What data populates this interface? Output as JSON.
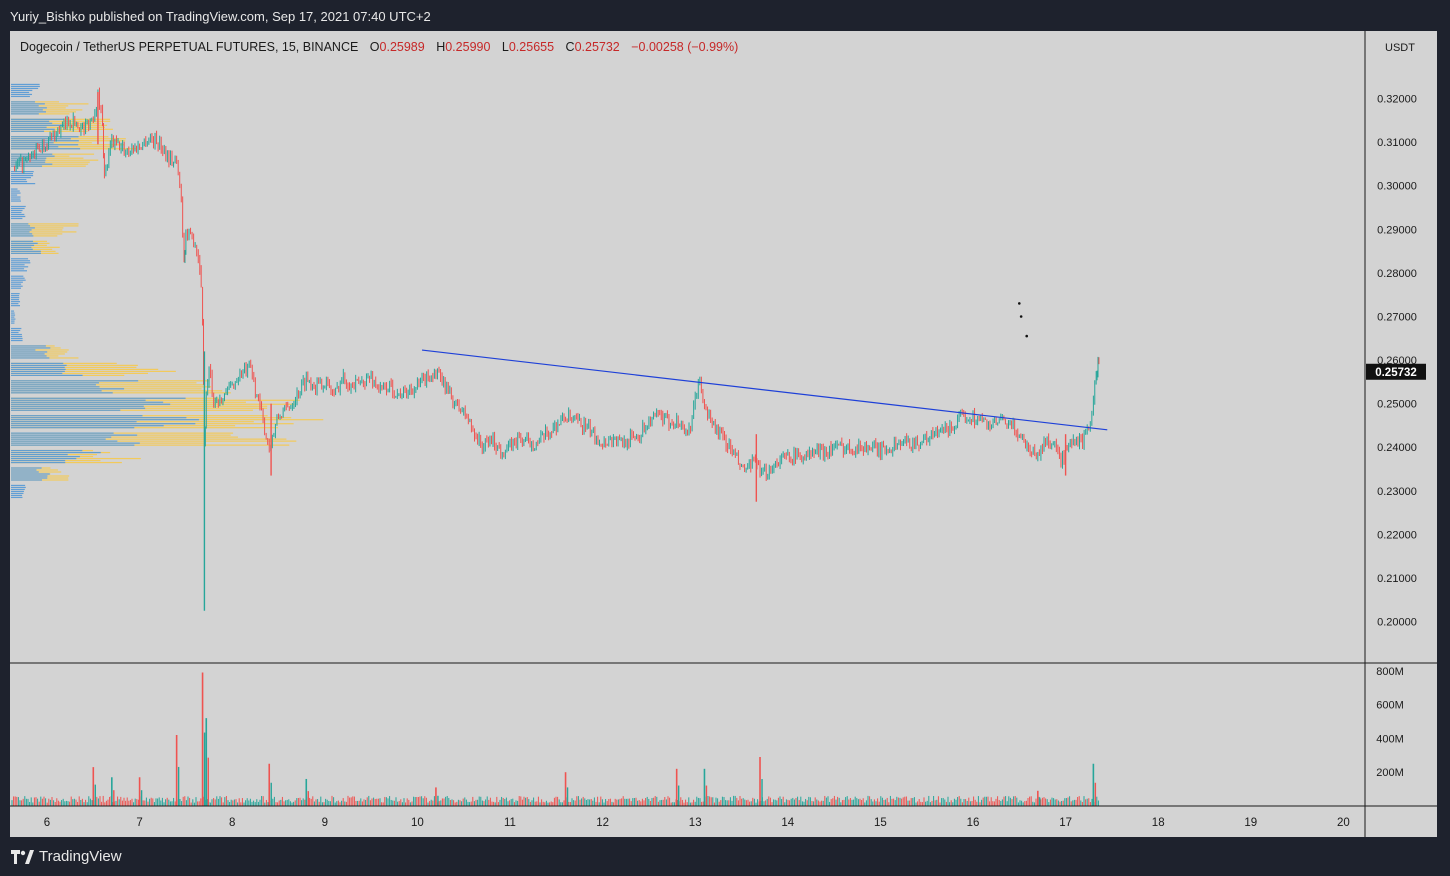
{
  "header": {
    "published": "Yuriy_Bishko published on TradingView.com, Sep 17, 2021 07:40 UTC+2"
  },
  "legend": {
    "symbol": "Dogecoin / TetherUS PERPETUAL FUTURES, 15, BINANCE",
    "open_label": "O",
    "open": "0.25989",
    "high_label": "H",
    "high": "0.25990",
    "low_label": "L",
    "low": "0.25655",
    "close_label": "C",
    "close": "0.25732",
    "change": "−0.00258 (−0.99%)"
  },
  "brand": {
    "name": "TradingView"
  },
  "colors": {
    "up": "#26a69a",
    "down": "#ef5350",
    "trendline": "#1e40d8",
    "vp_blue": "#5b9bd5",
    "vp_yellow": "#f5c94e",
    "background": "#d3d3d3"
  },
  "chart_data": {
    "type": "candlestick",
    "currency_label": "USDT",
    "last_price_label": "0.25732",
    "ylim": [
      0.1905,
      0.3355
    ],
    "y_ticks": [
      0.32,
      0.31,
      0.3,
      0.29,
      0.28,
      0.27,
      0.26,
      0.25,
      0.24,
      0.23,
      0.22,
      0.21,
      0.2
    ],
    "y_tick_labels": [
      "0.32000",
      "0.31000",
      "0.30000",
      "0.29000",
      "0.28000",
      "0.27000",
      "0.26000",
      "0.25000",
      "0.24000",
      "0.23000",
      "0.22000",
      "0.21000",
      "0.20000"
    ],
    "x_ticks": [
      6,
      7,
      8,
      9,
      10,
      11,
      12,
      13,
      14,
      15,
      16,
      17,
      18,
      19,
      20
    ],
    "x_tick_labels": [
      "6",
      "7",
      "8",
      "9",
      "10",
      "11",
      "12",
      "13",
      "14",
      "15",
      "16",
      "17",
      "18",
      "19",
      "20"
    ],
    "price_path": [
      [
        5.65,
        0.304
      ],
      [
        5.8,
        0.306
      ],
      [
        5.95,
        0.309
      ],
      [
        6.1,
        0.312
      ],
      [
        6.25,
        0.315
      ],
      [
        6.4,
        0.313
      ],
      [
        6.5,
        0.316
      ],
      [
        6.55,
        0.321
      ],
      [
        6.6,
        0.315
      ],
      [
        6.62,
        0.302
      ],
      [
        6.7,
        0.31
      ],
      [
        6.85,
        0.308
      ],
      [
        7.0,
        0.309
      ],
      [
        7.1,
        0.311
      ],
      [
        7.2,
        0.31
      ],
      [
        7.3,
        0.307
      ],
      [
        7.4,
        0.305
      ],
      [
        7.45,
        0.297
      ],
      [
        7.48,
        0.283
      ],
      [
        7.5,
        0.289
      ],
      [
        7.6,
        0.287
      ],
      [
        7.65,
        0.282
      ],
      [
        7.68,
        0.27
      ],
      [
        7.7,
        0.24
      ],
      [
        7.72,
        0.252
      ],
      [
        7.75,
        0.258
      ],
      [
        7.8,
        0.25
      ],
      [
        7.9,
        0.252
      ],
      [
        8.0,
        0.254
      ],
      [
        8.1,
        0.257
      ],
      [
        8.2,
        0.258
      ],
      [
        8.3,
        0.249
      ],
      [
        8.35,
        0.244
      ],
      [
        8.4,
        0.24
      ],
      [
        8.5,
        0.247
      ],
      [
        8.6,
        0.249
      ],
      [
        8.7,
        0.252
      ],
      [
        8.8,
        0.256
      ],
      [
        8.9,
        0.254
      ],
      [
        9.0,
        0.255
      ],
      [
        9.1,
        0.252
      ],
      [
        9.2,
        0.256
      ],
      [
        9.3,
        0.254
      ],
      [
        9.4,
        0.255
      ],
      [
        9.5,
        0.256
      ],
      [
        9.6,
        0.253
      ],
      [
        9.7,
        0.254
      ],
      [
        9.8,
        0.252
      ],
      [
        9.9,
        0.253
      ],
      [
        10.0,
        0.254
      ],
      [
        10.1,
        0.256
      ],
      [
        10.2,
        0.257
      ],
      [
        10.3,
        0.254
      ],
      [
        10.4,
        0.25
      ],
      [
        10.5,
        0.248
      ],
      [
        10.6,
        0.244
      ],
      [
        10.7,
        0.24
      ],
      [
        10.8,
        0.242
      ],
      [
        10.9,
        0.239
      ],
      [
        11.0,
        0.24
      ],
      [
        11.1,
        0.242
      ],
      [
        11.2,
        0.241
      ],
      [
        11.3,
        0.241
      ],
      [
        11.4,
        0.243
      ],
      [
        11.5,
        0.245
      ],
      [
        11.6,
        0.247
      ],
      [
        11.7,
        0.246
      ],
      [
        11.8,
        0.245
      ],
      [
        11.9,
        0.243
      ],
      [
        12.0,
        0.241
      ],
      [
        12.1,
        0.242
      ],
      [
        12.2,
        0.241
      ],
      [
        12.3,
        0.242
      ],
      [
        12.4,
        0.243
      ],
      [
        12.5,
        0.246
      ],
      [
        12.6,
        0.247
      ],
      [
        12.7,
        0.246
      ],
      [
        12.8,
        0.246
      ],
      [
        12.9,
        0.244
      ],
      [
        12.95,
        0.243
      ],
      [
        13.0,
        0.252
      ],
      [
        13.05,
        0.255
      ],
      [
        13.1,
        0.249
      ],
      [
        13.2,
        0.245
      ],
      [
        13.3,
        0.242
      ],
      [
        13.4,
        0.239
      ],
      [
        13.5,
        0.235
      ],
      [
        13.6,
        0.235
      ],
      [
        13.65,
        0.238
      ],
      [
        13.7,
        0.233
      ],
      [
        13.8,
        0.235
      ],
      [
        13.9,
        0.237
      ],
      [
        14.0,
        0.238
      ],
      [
        14.1,
        0.238
      ],
      [
        14.2,
        0.238
      ],
      [
        14.3,
        0.239
      ],
      [
        14.4,
        0.239
      ],
      [
        14.5,
        0.24
      ],
      [
        14.6,
        0.24
      ],
      [
        14.7,
        0.24
      ],
      [
        14.8,
        0.24
      ],
      [
        14.9,
        0.24
      ],
      [
        15.0,
        0.239
      ],
      [
        15.1,
        0.24
      ],
      [
        15.2,
        0.241
      ],
      [
        15.3,
        0.241
      ],
      [
        15.4,
        0.241
      ],
      [
        15.5,
        0.242
      ],
      [
        15.6,
        0.243
      ],
      [
        15.7,
        0.244
      ],
      [
        15.8,
        0.245
      ],
      [
        15.9,
        0.247
      ],
      [
        16.0,
        0.247
      ],
      [
        16.1,
        0.246
      ],
      [
        16.2,
        0.245
      ],
      [
        16.3,
        0.246
      ],
      [
        16.4,
        0.245
      ],
      [
        16.5,
        0.243
      ],
      [
        16.6,
        0.24
      ],
      [
        16.7,
        0.238
      ],
      [
        16.8,
        0.242
      ],
      [
        16.9,
        0.24
      ],
      [
        16.95,
        0.236
      ],
      [
        17.0,
        0.239
      ],
      [
        17.1,
        0.241
      ],
      [
        17.2,
        0.242
      ],
      [
        17.25,
        0.244
      ],
      [
        17.3,
        0.251
      ],
      [
        17.33,
        0.256
      ],
      [
        17.35,
        0.2595
      ],
      [
        17.37,
        0.2573
      ]
    ],
    "wick_marks": [
      [
        7.7,
        0.2025,
        0.262
      ],
      [
        8.42,
        0.2335,
        0.25
      ],
      [
        13.66,
        0.2275,
        0.243
      ],
      [
        6.55,
        0.3095,
        0.3215
      ],
      [
        17.0,
        0.2335,
        0.243
      ]
    ],
    "trendline": {
      "x1": 10.05,
      "y1": 0.2623,
      "x2": 17.45,
      "y2": 0.244
    },
    "dots": [
      [
        16.5,
        0.273
      ],
      [
        16.52,
        0.27
      ],
      [
        16.58,
        0.2655
      ]
    ],
    "volume_profile": {
      "blue": [
        [
          0.322,
          30
        ],
        [
          0.318,
          40
        ],
        [
          0.314,
          55
        ],
        [
          0.31,
          70
        ],
        [
          0.306,
          50
        ],
        [
          0.302,
          25
        ],
        [
          0.298,
          10
        ],
        [
          0.294,
          15
        ],
        [
          0.29,
          25
        ],
        [
          0.286,
          30
        ],
        [
          0.282,
          20
        ],
        [
          0.278,
          15
        ],
        [
          0.274,
          10
        ],
        [
          0.27,
          5
        ],
        [
          0.266,
          12
        ],
        [
          0.262,
          40
        ],
        [
          0.258,
          85
        ],
        [
          0.254,
          130
        ],
        [
          0.25,
          175
        ],
        [
          0.246,
          190
        ],
        [
          0.242,
          150
        ],
        [
          0.238,
          90
        ],
        [
          0.234,
          40
        ],
        [
          0.23,
          15
        ]
      ],
      "yellow": [
        [
          0.318,
          80
        ],
        [
          0.314,
          110
        ],
        [
          0.31,
          130
        ],
        [
          0.306,
          90
        ],
        [
          0.29,
          70
        ],
        [
          0.286,
          50
        ],
        [
          0.262,
          70
        ],
        [
          0.258,
          170
        ],
        [
          0.254,
          260
        ],
        [
          0.25,
          300
        ],
        [
          0.246,
          320
        ],
        [
          0.242,
          300
        ],
        [
          0.238,
          130
        ],
        [
          0.234,
          60
        ]
      ]
    },
    "volume": {
      "ylim": [
        0,
        840
      ],
      "y_ticks": [
        800,
        600,
        400,
        200
      ],
      "y_tick_labels": [
        "800M",
        "600M",
        "400M",
        "200M"
      ],
      "spikes": [
        [
          6.5,
          230,
          "down"
        ],
        [
          6.7,
          170,
          "up"
        ],
        [
          7.0,
          170,
          "down"
        ],
        [
          7.4,
          420,
          "down"
        ],
        [
          7.68,
          790,
          "down"
        ],
        [
          7.72,
          520,
          "up"
        ],
        [
          8.4,
          250,
          "down"
        ],
        [
          8.8,
          160,
          "up"
        ],
        [
          10.2,
          110,
          "down"
        ],
        [
          11.6,
          200,
          "down"
        ],
        [
          12.8,
          220,
          "down"
        ],
        [
          13.1,
          220,
          "up"
        ],
        [
          13.7,
          290,
          "down"
        ],
        [
          16.7,
          90,
          "down"
        ],
        [
          17.3,
          250,
          "up"
        ]
      ]
    }
  }
}
